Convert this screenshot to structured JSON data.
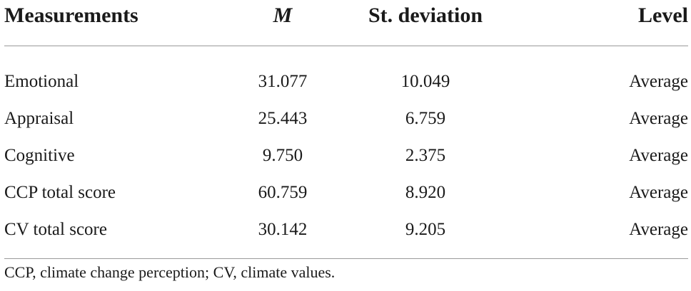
{
  "table": {
    "headers": [
      "Measurements",
      "M",
      "St. deviation",
      "Level"
    ],
    "rows": [
      [
        "Emotional",
        "31.077",
        "10.049",
        "Average"
      ],
      [
        "Appraisal",
        "25.443",
        "6.759",
        "Average"
      ],
      [
        "Cognitive",
        "9.750",
        "2.375",
        "Average"
      ],
      [
        "CCP total score",
        "60.759",
        "8.920",
        "Average"
      ],
      [
        "CV total score",
        "30.142",
        "9.205",
        "Average"
      ]
    ]
  },
  "footnote": "CCP, climate change perception; CV, climate values."
}
